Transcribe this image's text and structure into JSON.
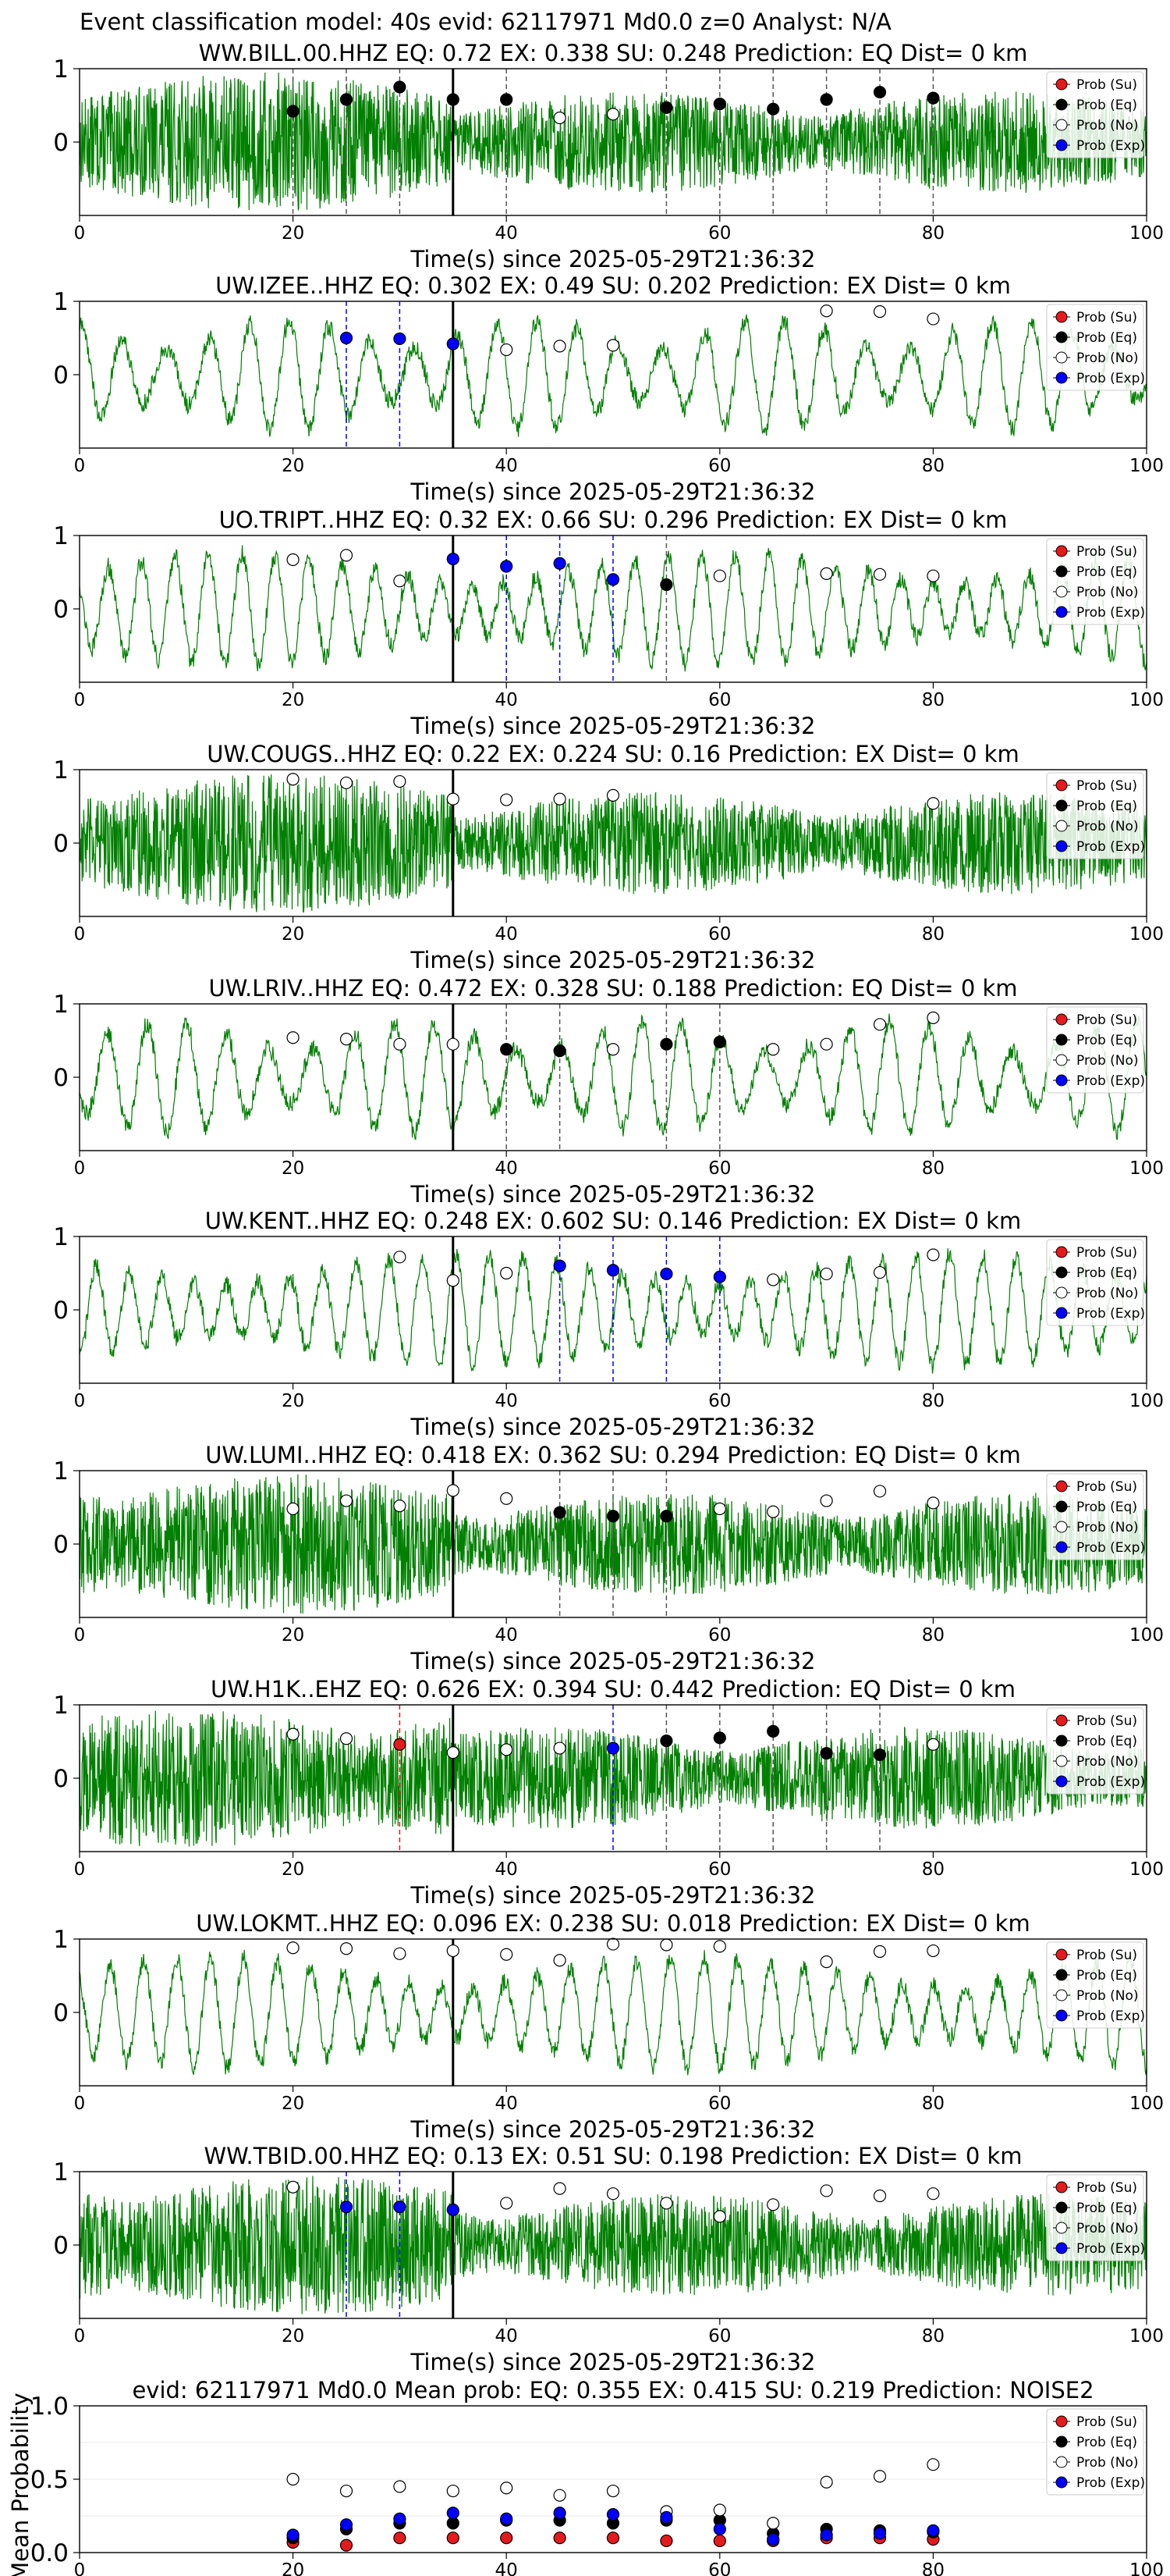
{
  "figure": {
    "title": "Event classification model: 40s evid: 62117971 Md0.0 z=0 Analyst: N/A",
    "xlabel": "Time(s) since 2025-05-29T21:36:32",
    "xticks": [
      "0",
      "20",
      "40",
      "60",
      "80",
      "100"
    ],
    "yticks": [
      "1",
      "0"
    ],
    "x_range": [
      0,
      100
    ],
    "y_range": [
      -1,
      1
    ],
    "window_start_line_time": 35,
    "legend": {
      "position": "top-right",
      "items": [
        {
          "label": "Prob (Su)",
          "color": "#e41a1c",
          "edge": "#000000"
        },
        {
          "label": "Prob (Eq)",
          "color": "#000000",
          "edge": "#000000"
        },
        {
          "label": "Prob (No)",
          "color": "#ffffff",
          "edge": "#000000"
        },
        {
          "label": "Prob (Exp)",
          "color": "#0000ff",
          "edge": "#000000"
        }
      ]
    },
    "colors": {
      "waveform": "#008000",
      "su": "#e41a1c",
      "eq": "#000000",
      "no": "#ffffff",
      "exp": "#0000ff",
      "window_line": "#000000"
    }
  },
  "chart_data": [
    {
      "type": "line",
      "station": "WW.BILL.00.HHZ",
      "title": "WW.BILL.00.HHZ   EQ: 0.72  EX: 0.338  SU: 0.248   Prediction: EQ    Dist= 0 km",
      "noise_style": "noisy",
      "ylim": [
        -1,
        1
      ],
      "xlim": [
        0,
        100
      ],
      "points": [
        {
          "t": 20,
          "cls": "eq",
          "p": 0.42
        },
        {
          "t": 25,
          "cls": "eq",
          "p": 0.58
        },
        {
          "t": 30,
          "cls": "eq",
          "p": 0.75
        },
        {
          "t": 35,
          "cls": "eq",
          "p": 0.58
        },
        {
          "t": 40,
          "cls": "eq",
          "p": 0.58
        },
        {
          "t": 45,
          "cls": "no",
          "p": 0.33
        },
        {
          "t": 50,
          "cls": "no",
          "p": 0.38
        },
        {
          "t": 55,
          "cls": "eq",
          "p": 0.47
        },
        {
          "t": 60,
          "cls": "eq",
          "p": 0.52
        },
        {
          "t": 65,
          "cls": "eq",
          "p": 0.45
        },
        {
          "t": 70,
          "cls": "eq",
          "p": 0.58
        },
        {
          "t": 75,
          "cls": "eq",
          "p": 0.68
        },
        {
          "t": 80,
          "cls": "eq",
          "p": 0.6
        }
      ]
    },
    {
      "type": "line",
      "station": "UW.IZEE..HHZ",
      "title": "UW.IZEE..HHZ   EQ: 0.302  EX: 0.49  SU: 0.202   Prediction: EX    Dist= 0 km",
      "noise_style": "wavy",
      "ylim": [
        -1,
        1
      ],
      "xlim": [
        0,
        100
      ],
      "points": [
        {
          "t": 25,
          "cls": "exp",
          "p": 0.5
        },
        {
          "t": 30,
          "cls": "exp",
          "p": 0.49
        },
        {
          "t": 35,
          "cls": "exp",
          "p": 0.42
        },
        {
          "t": 40,
          "cls": "no",
          "p": 0.34
        },
        {
          "t": 45,
          "cls": "no",
          "p": 0.39
        },
        {
          "t": 50,
          "cls": "no",
          "p": 0.4
        },
        {
          "t": 70,
          "cls": "no",
          "p": 0.87
        },
        {
          "t": 75,
          "cls": "no",
          "p": 0.86
        },
        {
          "t": 80,
          "cls": "no",
          "p": 0.76
        }
      ]
    },
    {
      "type": "line",
      "station": "UO.TRIPT..HHZ",
      "title": "UO.TRIPT..HHZ   EQ: 0.32  EX: 0.66  SU: 0.296   Prediction: EX    Dist= 0 km",
      "noise_style": "wavy",
      "ylim": [
        -1,
        1
      ],
      "xlim": [
        0,
        100
      ],
      "points": [
        {
          "t": 20,
          "cls": "no",
          "p": 0.67
        },
        {
          "t": 25,
          "cls": "no",
          "p": 0.73
        },
        {
          "t": 30,
          "cls": "no",
          "p": 0.38
        },
        {
          "t": 35,
          "cls": "exp",
          "p": 0.68
        },
        {
          "t": 40,
          "cls": "exp",
          "p": 0.58
        },
        {
          "t": 45,
          "cls": "exp",
          "p": 0.62
        },
        {
          "t": 50,
          "cls": "exp",
          "p": 0.4
        },
        {
          "t": 55,
          "cls": "eq",
          "p": 0.33
        },
        {
          "t": 60,
          "cls": "no",
          "p": 0.45
        },
        {
          "t": 70,
          "cls": "no",
          "p": 0.48
        },
        {
          "t": 75,
          "cls": "no",
          "p": 0.47
        },
        {
          "t": 80,
          "cls": "no",
          "p": 0.45
        }
      ]
    },
    {
      "type": "line",
      "station": "UW.COUGS..HHZ",
      "title": "UW.COUGS..HHZ   EQ: 0.22  EX: 0.224  SU: 0.16   Prediction: EX    Dist= 0 km",
      "noise_style": "noisy",
      "ylim": [
        -1,
        1
      ],
      "xlim": [
        0,
        100
      ],
      "points": [
        {
          "t": 20,
          "cls": "no",
          "p": 0.87
        },
        {
          "t": 25,
          "cls": "no",
          "p": 0.82
        },
        {
          "t": 30,
          "cls": "no",
          "p": 0.84
        },
        {
          "t": 35,
          "cls": "no",
          "p": 0.6
        },
        {
          "t": 40,
          "cls": "no",
          "p": 0.59
        },
        {
          "t": 45,
          "cls": "no",
          "p": 0.6
        },
        {
          "t": 50,
          "cls": "no",
          "p": 0.65
        },
        {
          "t": 80,
          "cls": "no",
          "p": 0.54
        }
      ]
    },
    {
      "type": "line",
      "station": "UW.LRIV..HHZ",
      "title": "UW.LRIV..HHZ   EQ: 0.472  EX: 0.328  SU: 0.188   Prediction: EQ    Dist= 0 km",
      "noise_style": "wavy",
      "ylim": [
        -1,
        1
      ],
      "xlim": [
        0,
        100
      ],
      "points": [
        {
          "t": 20,
          "cls": "no",
          "p": 0.54
        },
        {
          "t": 25,
          "cls": "no",
          "p": 0.52
        },
        {
          "t": 30,
          "cls": "no",
          "p": 0.45
        },
        {
          "t": 35,
          "cls": "no",
          "p": 0.45
        },
        {
          "t": 40,
          "cls": "eq",
          "p": 0.38
        },
        {
          "t": 45,
          "cls": "eq",
          "p": 0.36
        },
        {
          "t": 50,
          "cls": "no",
          "p": 0.38
        },
        {
          "t": 55,
          "cls": "eq",
          "p": 0.45
        },
        {
          "t": 60,
          "cls": "eq",
          "p": 0.48
        },
        {
          "t": 65,
          "cls": "no",
          "p": 0.38
        },
        {
          "t": 70,
          "cls": "no",
          "p": 0.45
        },
        {
          "t": 75,
          "cls": "no",
          "p": 0.72
        },
        {
          "t": 80,
          "cls": "no",
          "p": 0.81
        }
      ]
    },
    {
      "type": "line",
      "station": "UW.KENT..HHZ",
      "title": "UW.KENT..HHZ   EQ: 0.248  EX: 0.602  SU: 0.146   Prediction: EX    Dist= 0 km",
      "noise_style": "wavy",
      "ylim": [
        -1,
        1
      ],
      "xlim": [
        0,
        100
      ],
      "points": [
        {
          "t": 30,
          "cls": "no",
          "p": 0.72
        },
        {
          "t": 35,
          "cls": "no",
          "p": 0.4
        },
        {
          "t": 40,
          "cls": "no",
          "p": 0.5
        },
        {
          "t": 45,
          "cls": "exp",
          "p": 0.6
        },
        {
          "t": 50,
          "cls": "exp",
          "p": 0.54
        },
        {
          "t": 55,
          "cls": "exp",
          "p": 0.49
        },
        {
          "t": 60,
          "cls": "exp",
          "p": 0.45
        },
        {
          "t": 65,
          "cls": "no",
          "p": 0.41
        },
        {
          "t": 70,
          "cls": "no",
          "p": 0.49
        },
        {
          "t": 75,
          "cls": "no",
          "p": 0.51
        },
        {
          "t": 80,
          "cls": "no",
          "p": 0.75
        }
      ]
    },
    {
      "type": "line",
      "station": "UW.LUMI..HHZ",
      "title": "UW.LUMI..HHZ   EQ: 0.418  EX: 0.362  SU: 0.294   Prediction: EQ    Dist= 0 km",
      "noise_style": "noisy",
      "ylim": [
        -1,
        1
      ],
      "xlim": [
        0,
        100
      ],
      "points": [
        {
          "t": 20,
          "cls": "no",
          "p": 0.48
        },
        {
          "t": 25,
          "cls": "no",
          "p": 0.59
        },
        {
          "t": 30,
          "cls": "no",
          "p": 0.52
        },
        {
          "t": 35,
          "cls": "no",
          "p": 0.73
        },
        {
          "t": 40,
          "cls": "no",
          "p": 0.62
        },
        {
          "t": 45,
          "cls": "eq",
          "p": 0.43
        },
        {
          "t": 50,
          "cls": "eq",
          "p": 0.38
        },
        {
          "t": 55,
          "cls": "eq",
          "p": 0.38
        },
        {
          "t": 60,
          "cls": "no",
          "p": 0.48
        },
        {
          "t": 65,
          "cls": "no",
          "p": 0.44
        },
        {
          "t": 70,
          "cls": "no",
          "p": 0.59
        },
        {
          "t": 75,
          "cls": "no",
          "p": 0.72
        },
        {
          "t": 80,
          "cls": "no",
          "p": 0.56
        }
      ]
    },
    {
      "type": "line",
      "station": "UW.H1K..EHZ",
      "title": "UW.H1K..EHZ   EQ: 0.626  EX: 0.394  SU: 0.442   Prediction: EQ    Dist= 0 km",
      "noise_style": "noisy",
      "ylim": [
        -1,
        1
      ],
      "xlim": [
        0,
        100
      ],
      "points": [
        {
          "t": 20,
          "cls": "no",
          "p": 0.6
        },
        {
          "t": 25,
          "cls": "no",
          "p": 0.54
        },
        {
          "t": 30,
          "cls": "su",
          "p": 0.46
        },
        {
          "t": 35,
          "cls": "no",
          "p": 0.35
        },
        {
          "t": 40,
          "cls": "no",
          "p": 0.39
        },
        {
          "t": 45,
          "cls": "no",
          "p": 0.41
        },
        {
          "t": 50,
          "cls": "exp",
          "p": 0.41
        },
        {
          "t": 55,
          "cls": "eq",
          "p": 0.51
        },
        {
          "t": 60,
          "cls": "eq",
          "p": 0.55
        },
        {
          "t": 65,
          "cls": "eq",
          "p": 0.64
        },
        {
          "t": 70,
          "cls": "eq",
          "p": 0.34
        },
        {
          "t": 75,
          "cls": "eq",
          "p": 0.32
        },
        {
          "t": 80,
          "cls": "no",
          "p": 0.46
        }
      ]
    },
    {
      "type": "line",
      "station": "UW.LOKMT..HHZ",
      "title": "UW.LOKMT..HHZ   EQ: 0.096  EX: 0.238  SU: 0.018   Prediction: EX    Dist= 0 km",
      "noise_style": "wavy",
      "ylim": [
        -1,
        1
      ],
      "xlim": [
        0,
        100
      ],
      "points": [
        {
          "t": 20,
          "cls": "no",
          "p": 0.88
        },
        {
          "t": 25,
          "cls": "no",
          "p": 0.87
        },
        {
          "t": 30,
          "cls": "no",
          "p": 0.8
        },
        {
          "t": 35,
          "cls": "no",
          "p": 0.84
        },
        {
          "t": 40,
          "cls": "no",
          "p": 0.79
        },
        {
          "t": 45,
          "cls": "no",
          "p": 0.71
        },
        {
          "t": 50,
          "cls": "no",
          "p": 0.93
        },
        {
          "t": 55,
          "cls": "no",
          "p": 0.92
        },
        {
          "t": 60,
          "cls": "no",
          "p": 0.9
        },
        {
          "t": 70,
          "cls": "no",
          "p": 0.69
        },
        {
          "t": 75,
          "cls": "no",
          "p": 0.83
        },
        {
          "t": 80,
          "cls": "no",
          "p": 0.84
        }
      ]
    },
    {
      "type": "line",
      "station": "WW.TBID.00.HHZ",
      "title": "WW.TBID.00.HHZ   EQ: 0.13  EX: 0.51  SU: 0.198   Prediction: EX    Dist= 0 km",
      "noise_style": "noisy",
      "ylim": [
        -1,
        1
      ],
      "xlim": [
        0,
        100
      ],
      "points": [
        {
          "t": 20,
          "cls": "no",
          "p": 0.79
        },
        {
          "t": 25,
          "cls": "exp",
          "p": 0.52
        },
        {
          "t": 30,
          "cls": "exp",
          "p": 0.52
        },
        {
          "t": 35,
          "cls": "exp",
          "p": 0.48
        },
        {
          "t": 40,
          "cls": "no",
          "p": 0.57
        },
        {
          "t": 45,
          "cls": "no",
          "p": 0.77
        },
        {
          "t": 50,
          "cls": "no",
          "p": 0.7
        },
        {
          "t": 55,
          "cls": "no",
          "p": 0.57
        },
        {
          "t": 60,
          "cls": "no",
          "p": 0.39
        },
        {
          "t": 65,
          "cls": "no",
          "p": 0.55
        },
        {
          "t": 70,
          "cls": "no",
          "p": 0.74
        },
        {
          "t": 75,
          "cls": "no",
          "p": 0.67
        },
        {
          "t": 80,
          "cls": "no",
          "p": 0.7
        }
      ]
    },
    {
      "type": "scatter",
      "title": "evid: 62117971  Md0.0   Mean prob:   EQ: 0.355  EX: 0.415  SU: 0.219   Prediction: NOISE2",
      "ylabel": "Mean Probability",
      "xlim": [
        0,
        100
      ],
      "ylim": [
        0,
        1
      ],
      "xticks": [
        "0",
        "20",
        "40",
        "60",
        "80",
        "100"
      ],
      "yticks": [
        "1.0",
        "0.5",
        "0.0"
      ],
      "x": [
        20,
        25,
        30,
        35,
        40,
        45,
        50,
        55,
        60,
        65,
        70,
        75,
        80
      ],
      "series": [
        {
          "name": "Prob (Su)",
          "cls": "su",
          "values": [
            0.07,
            0.05,
            0.1,
            0.1,
            0.1,
            0.1,
            0.1,
            0.08,
            0.08,
            0.08,
            0.1,
            0.1,
            0.09
          ]
        },
        {
          "name": "Prob (Eq)",
          "cls": "eq",
          "values": [
            0.1,
            0.16,
            0.2,
            0.2,
            0.22,
            0.22,
            0.2,
            0.22,
            0.22,
            0.13,
            0.16,
            0.15,
            0.14
          ]
        },
        {
          "name": "Prob (No)",
          "cls": "no",
          "values": [
            0.5,
            0.42,
            0.45,
            0.42,
            0.44,
            0.39,
            0.42,
            0.28,
            0.29,
            0.2,
            0.48,
            0.52,
            0.6
          ]
        },
        {
          "name": "Prob (Exp)",
          "cls": "exp",
          "values": [
            0.12,
            0.19,
            0.23,
            0.27,
            0.23,
            0.27,
            0.26,
            0.24,
            0.16,
            0.09,
            0.12,
            0.13,
            0.15
          ]
        }
      ]
    }
  ]
}
